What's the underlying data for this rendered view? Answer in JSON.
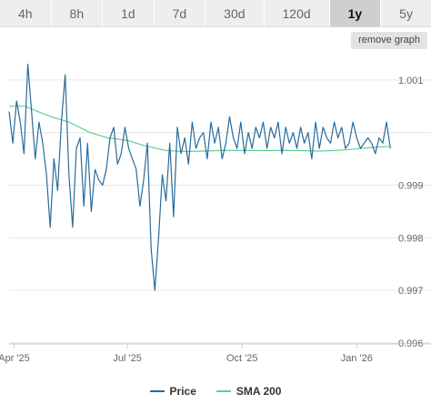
{
  "range_tabs": [
    {
      "label": "4h",
      "active": false
    },
    {
      "label": "8h",
      "active": false
    },
    {
      "label": "1d",
      "active": false
    },
    {
      "label": "7d",
      "active": false
    },
    {
      "label": "30d",
      "active": false
    },
    {
      "label": "120d",
      "active": false
    },
    {
      "label": "1y",
      "active": true
    },
    {
      "label": "5y",
      "active": false
    }
  ],
  "remove_graph_label": "remove graph",
  "colors": {
    "price": "#2a6b9c",
    "sma": "#66cc99",
    "grid": "#e6e6e6",
    "axis_text": "#666666"
  },
  "chart_data": {
    "type": "line",
    "title": "",
    "xlabel": "",
    "ylabel": "",
    "ylim": [
      0.996,
      1.0015
    ],
    "y_ticks": [
      0.996,
      0.997,
      0.998,
      0.999,
      1.0,
      1.001
    ],
    "y_tick_labels": [
      "0.996",
      "0.997",
      "0.998",
      "0.999",
      "",
      "1.001"
    ],
    "x_ticks": [
      "2025-04-01",
      "2025-07-01",
      "2025-10-01",
      "2026-01-01"
    ],
    "x_tick_labels": [
      "Apr '25",
      "Jul '25",
      "Oct '25",
      "Jan '26"
    ],
    "xlim": [
      "2025-03-28",
      "2026-01-30"
    ],
    "grid": "horizontal",
    "legend_position": "bottom-center",
    "series": [
      {
        "name": "Price",
        "x": [
          "2025-03-28",
          "2025-03-31",
          "2025-04-03",
          "2025-04-06",
          "2025-04-09",
          "2025-04-12",
          "2025-04-15",
          "2025-04-18",
          "2025-04-21",
          "2025-04-24",
          "2025-04-27",
          "2025-04-30",
          "2025-05-03",
          "2025-05-06",
          "2025-05-09",
          "2025-05-12",
          "2025-05-15",
          "2025-05-18",
          "2025-05-21",
          "2025-05-24",
          "2025-05-27",
          "2025-05-30",
          "2025-06-02",
          "2025-06-05",
          "2025-06-08",
          "2025-06-11",
          "2025-06-14",
          "2025-06-17",
          "2025-06-20",
          "2025-06-23",
          "2025-06-26",
          "2025-06-29",
          "2025-07-02",
          "2025-07-05",
          "2025-07-08",
          "2025-07-11",
          "2025-07-14",
          "2025-07-17",
          "2025-07-20",
          "2025-07-23",
          "2025-07-26",
          "2025-07-29",
          "2025-08-01",
          "2025-08-04",
          "2025-08-07",
          "2025-08-10",
          "2025-08-13",
          "2025-08-16",
          "2025-08-19",
          "2025-08-22",
          "2025-08-25",
          "2025-08-28",
          "2025-08-31",
          "2025-09-03",
          "2025-09-06",
          "2025-09-09",
          "2025-09-12",
          "2025-09-15",
          "2025-09-18",
          "2025-09-21",
          "2025-09-24",
          "2025-09-27",
          "2025-09-30",
          "2025-10-03",
          "2025-10-06",
          "2025-10-09",
          "2025-10-12",
          "2025-10-15",
          "2025-10-18",
          "2025-10-21",
          "2025-10-24",
          "2025-10-27",
          "2025-10-30",
          "2025-11-02",
          "2025-11-05",
          "2025-11-08",
          "2025-11-11",
          "2025-11-14",
          "2025-11-17",
          "2025-11-20",
          "2025-11-23",
          "2025-11-26",
          "2025-11-29",
          "2025-12-02",
          "2025-12-05",
          "2025-12-08",
          "2025-12-11",
          "2025-12-14",
          "2025-12-17",
          "2025-12-20",
          "2025-12-23",
          "2025-12-26",
          "2025-12-29",
          "2026-01-01",
          "2026-01-04",
          "2026-01-07",
          "2026-01-10",
          "2026-01-13",
          "2026-01-16",
          "2026-01-19",
          "2026-01-22",
          "2026-01-25",
          "2026-01-28"
        ],
        "values": [
          1.0004,
          0.9998,
          1.0006,
          1.0002,
          0.9996,
          1.0013,
          1.0004,
          0.9995,
          1.0002,
          0.9998,
          0.9992,
          0.9982,
          0.9995,
          0.9989,
          1.0002,
          1.0011,
          0.9992,
          0.9982,
          0.9997,
          0.9999,
          0.9986,
          0.9998,
          0.9985,
          0.9993,
          0.9991,
          0.999,
          0.9993,
          0.9999,
          1.0001,
          0.9994,
          0.9996,
          1.0001,
          0.9997,
          0.9995,
          0.9993,
          0.9986,
          0.9991,
          0.9998,
          0.9978,
          0.997,
          0.998,
          0.9992,
          0.9987,
          0.9998,
          0.9984,
          1.0001,
          0.9996,
          0.9999,
          0.9994,
          1.0002,
          0.9997,
          0.9999,
          1.0,
          0.9995,
          1.0002,
          0.9998,
          1.0001,
          0.9995,
          0.9998,
          1.0003,
          0.9999,
          0.9997,
          1.0002,
          0.9996,
          1.0,
          0.9997,
          1.0001,
          0.9999,
          1.0002,
          0.9997,
          1.0001,
          0.9999,
          1.0002,
          0.9996,
          1.0001,
          0.9998,
          1.0,
          0.9997,
          1.0001,
          0.9998,
          1.0,
          0.9995,
          1.0002,
          0.9997,
          1.0001,
          0.9999,
          0.9998,
          1.0002,
          0.9999,
          1.0001,
          0.9997,
          0.9998,
          1.0002,
          0.9999,
          0.9997,
          0.9998,
          0.9999,
          0.9998,
          0.9996,
          0.9999,
          0.9998,
          1.0002,
          0.9997
        ]
      },
      {
        "name": "SMA 200",
        "x": [
          "2025-03-28",
          "2025-04-10",
          "2025-04-20",
          "2025-05-01",
          "2025-05-15",
          "2025-06-01",
          "2025-06-15",
          "2025-07-01",
          "2025-07-15",
          "2025-08-01",
          "2025-08-15",
          "2025-09-01",
          "2025-09-15",
          "2025-10-01",
          "2025-10-15",
          "2025-11-01",
          "2025-11-15",
          "2025-12-01",
          "2025-12-15",
          "2026-01-01",
          "2026-01-15",
          "2026-01-28"
        ],
        "values": [
          1.0005,
          1.0005,
          1.0004,
          1.0003,
          1.0002,
          1.0,
          0.9999,
          0.99985,
          0.99975,
          0.99966,
          0.99964,
          0.99965,
          0.99966,
          0.99966,
          0.99966,
          0.99966,
          0.99966,
          0.99965,
          0.99966,
          0.99969,
          0.99972,
          0.99974
        ]
      }
    ]
  }
}
